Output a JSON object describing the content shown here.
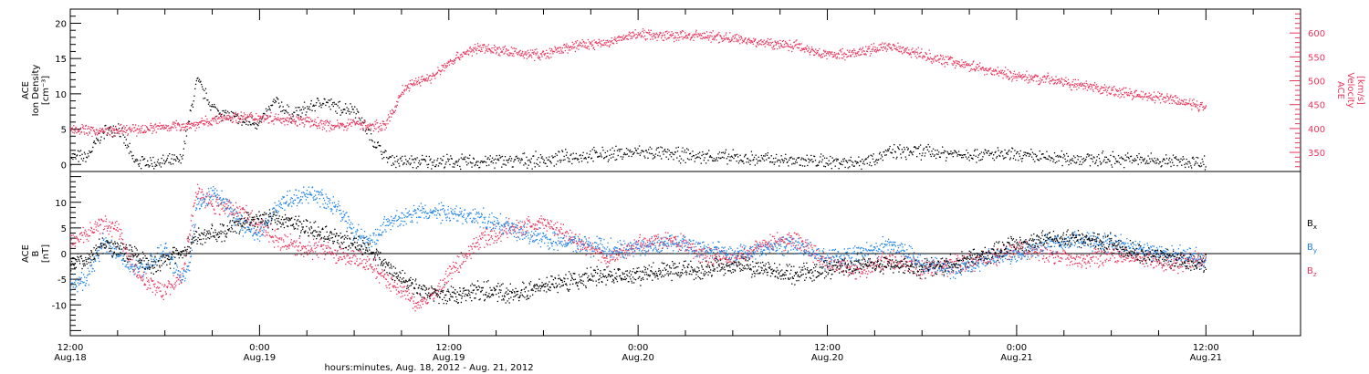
{
  "colors": {
    "density": "#000000",
    "velocity": "#e8375e",
    "bx": "#000000",
    "by": "#1e82e8",
    "bz": "#e8375e"
  },
  "xlabel": "hours:minutes, Aug. 18, 2012 - Aug. 21, 2012",
  "chart_data": [
    {
      "type": "scatter",
      "panel": "top",
      "xlim_hours": [
        0,
        78
      ],
      "x_ticks": [
        {
          "hour": 0,
          "time": "12:00",
          "date": "Aug.18"
        },
        {
          "hour": 12,
          "time": "0:00",
          "date": "Aug.19"
        },
        {
          "hour": 24,
          "time": "12:00",
          "date": "Aug.19"
        },
        {
          "hour": 36,
          "time": "0:00",
          "date": "Aug.20"
        },
        {
          "hour": 48,
          "time": "12:00",
          "date": "Aug.20"
        },
        {
          "hour": 60,
          "time": "0:00",
          "date": "Aug.21"
        },
        {
          "hour": 72,
          "time": "12:00",
          "date": "Aug.21"
        }
      ],
      "left_axis": {
        "label_lines": [
          "ACE",
          "Ion Density",
          "[cm⁻³]"
        ],
        "ylim": [
          -1,
          22
        ],
        "ticks": [
          0,
          5,
          10,
          15,
          20
        ]
      },
      "right_axis": {
        "label_lines": [
          "ACE",
          "Velocity",
          "[km/s]"
        ],
        "ylim": [
          310,
          650
        ],
        "ticks": [
          350,
          400,
          450,
          500,
          550,
          600
        ]
      },
      "series": [
        {
          "key": "density",
          "axis": "left",
          "x": [
            0,
            1,
            2,
            3,
            4,
            5,
            6,
            7,
            8,
            9,
            10,
            11,
            12,
            13,
            14,
            15,
            16,
            17,
            18,
            19,
            20,
            21,
            22,
            23,
            24,
            26,
            28,
            30,
            32,
            34,
            36,
            38,
            40,
            42,
            44,
            46,
            48,
            50,
            52,
            54,
            56,
            58,
            60,
            62,
            64,
            66,
            68,
            70,
            72
          ],
          "values": [
            1.2,
            1.0,
            4.5,
            5.5,
            0.5,
            0.3,
            0.4,
            0.6,
            12,
            8,
            7,
            6,
            6,
            9,
            7,
            8,
            9,
            8,
            8,
            4,
            1,
            0.5,
            0.4,
            0.5,
            0.4,
            0.5,
            0.6,
            0.7,
            1.2,
            1.5,
            1.8,
            1.5,
            1.2,
            1.0,
            0.8,
            0.6,
            0.5,
            0.4,
            1.8,
            1.9,
            1.6,
            1.5,
            1.3,
            1.0,
            0.9,
            0.8,
            0.7,
            0.5,
            0.4
          ]
        },
        {
          "key": "velocity",
          "axis": "right",
          "x": [
            0,
            2,
            4,
            6,
            8,
            10,
            12,
            14,
            16,
            17,
            18,
            19,
            20,
            20.5,
            21,
            22,
            23,
            24,
            25,
            26,
            28,
            30,
            32,
            34,
            36,
            38,
            40,
            42,
            44,
            46,
            48,
            50,
            52,
            54,
            56,
            58,
            60,
            62,
            64,
            66,
            68,
            70,
            72
          ],
          "values": [
            400,
            395,
            398,
            405,
            410,
            425,
            425,
            420,
            410,
            405,
            415,
            405,
            410,
            440,
            480,
            500,
            510,
            540,
            560,
            570,
            560,
            555,
            575,
            580,
            600,
            595,
            595,
            590,
            580,
            575,
            555,
            560,
            575,
            555,
            540,
            525,
            510,
            505,
            490,
            480,
            470,
            460,
            445
          ]
        }
      ]
    },
    {
      "type": "scatter",
      "panel": "bottom",
      "xlim_hours": [
        0,
        78
      ],
      "left_axis": {
        "label_lines": [
          "ACE",
          "B",
          "[nT]"
        ],
        "ylim": [
          -16,
          16
        ],
        "ticks": [
          -10,
          -5,
          0,
          5,
          10
        ]
      },
      "legend": [
        {
          "key": "bx",
          "label": "B",
          "sub": "x"
        },
        {
          "key": "by",
          "label": "B",
          "sub": "y"
        },
        {
          "key": "bz",
          "label": "B",
          "sub": "z"
        }
      ],
      "series": [
        {
          "key": "bx",
          "x": [
            0,
            1,
            2,
            3,
            4,
            5,
            6,
            7,
            8,
            9,
            10,
            11,
            12,
            13,
            14,
            15,
            16,
            17,
            18,
            19,
            20,
            21,
            22,
            24,
            26,
            28,
            30,
            32,
            34,
            36,
            38,
            40,
            42,
            44,
            46,
            48,
            50,
            52,
            54,
            56,
            58,
            60,
            62,
            64,
            66,
            68,
            70,
            72
          ],
          "values": [
            -2,
            -1,
            2,
            1,
            0,
            -2,
            -1,
            0,
            3,
            4,
            5,
            6,
            7,
            7,
            6,
            5,
            4,
            3,
            2,
            1,
            -2,
            -5,
            -7,
            -8,
            -7,
            -8,
            -6,
            -5,
            -4,
            -4,
            -3,
            -3,
            -2,
            -3,
            -4,
            -3,
            -2,
            -2,
            -3,
            -2,
            0,
            2,
            3,
            3,
            2,
            0,
            -1,
            -2
          ]
        },
        {
          "key": "by",
          "x": [
            0,
            1,
            2,
            3,
            4,
            5,
            6,
            7,
            7.5,
            8,
            9,
            10,
            11,
            12,
            13,
            14,
            15,
            16,
            17,
            18,
            19,
            20,
            21,
            22,
            24,
            26,
            28,
            30,
            32,
            34,
            36,
            38,
            40,
            42,
            44,
            46,
            48,
            50,
            52,
            54,
            56,
            58,
            60,
            62,
            64,
            66,
            68,
            70,
            72
          ],
          "values": [
            -6,
            -5,
            2,
            0,
            -3,
            -2,
            1,
            -5,
            -3,
            10,
            12,
            9,
            5,
            4,
            9,
            11,
            12,
            11,
            9,
            4,
            2,
            6,
            7,
            8,
            8,
            7,
            5,
            3,
            2,
            1,
            1,
            2,
            1,
            0,
            1,
            2,
            -1,
            0,
            2,
            -2,
            -3,
            -1,
            0,
            2,
            3,
            2,
            1,
            0,
            -1
          ]
        },
        {
          "key": "bz",
          "x": [
            0,
            1,
            2,
            3,
            4,
            5,
            6,
            7,
            8,
            9,
            10,
            11,
            12,
            13,
            14,
            15,
            16,
            17,
            18,
            19,
            20,
            21,
            22,
            23,
            24,
            26,
            28,
            30,
            32,
            34,
            36,
            38,
            40,
            42,
            44,
            46,
            48,
            50,
            52,
            54,
            56,
            58,
            60,
            62,
            64,
            66,
            68,
            70,
            72
          ],
          "values": [
            3,
            4,
            6,
            5,
            -3,
            -6,
            -7,
            -5,
            12,
            10,
            9,
            8,
            5,
            3,
            2,
            1,
            1,
            0,
            -1,
            -2,
            -5,
            -7,
            -10,
            -8,
            -4,
            3,
            5,
            6,
            3,
            -1,
            2,
            3,
            0,
            -1,
            2,
            3,
            -2,
            -3,
            -1,
            -3,
            -2,
            -1,
            1,
            0,
            -1,
            0,
            -1,
            -2,
            -1
          ]
        }
      ]
    }
  ]
}
